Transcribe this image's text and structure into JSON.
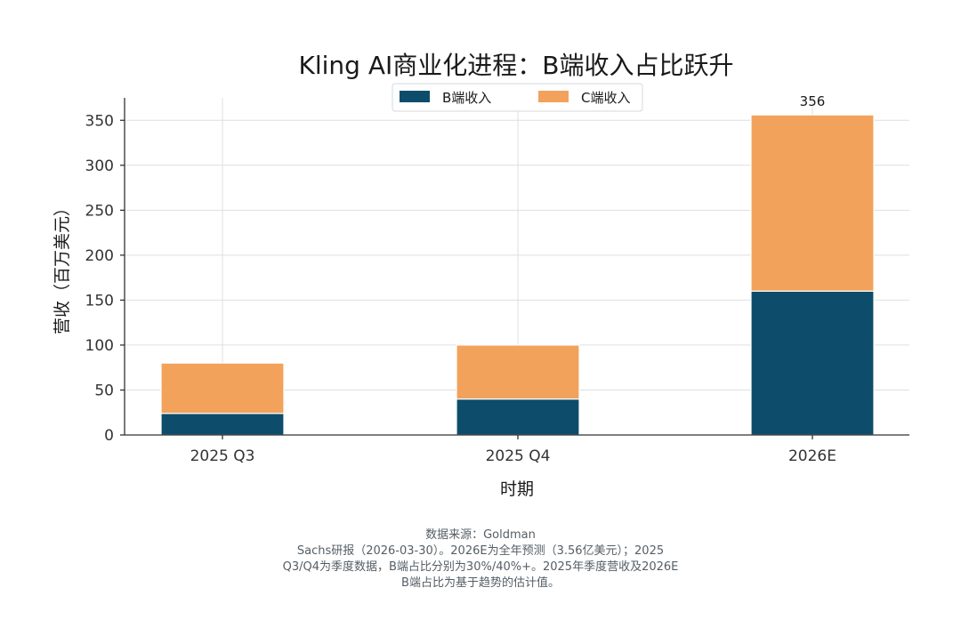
{
  "chart_data": {
    "type": "bar",
    "stacked": true,
    "title": "Kling AI商业化进程：B端收入占比跃升",
    "xlabel": "时期",
    "ylabel": "营收（百万美元）",
    "categories": [
      "2025 Q3",
      "2025 Q4",
      "2026E"
    ],
    "series": [
      {
        "name": "B端收入",
        "color": "#0d4d6b",
        "values": [
          24,
          40,
          160
        ]
      },
      {
        "name": "C端收入",
        "color": "#f2a25b",
        "values": [
          56,
          60,
          196
        ]
      }
    ],
    "totals_labels": [
      {
        "category": "2026E",
        "text": "356"
      }
    ],
    "ylim": [
      0,
      375
    ],
    "yticks": [
      0,
      50,
      100,
      150,
      200,
      250,
      300,
      350
    ],
    "grid": true,
    "legend_position": "top-center"
  },
  "footnote": {
    "lines": [
      "数据来源：Goldman",
      "Sachs研报（2026-03-30）。2026E为全年预测（3.56亿美元）；2025",
      "Q3/Q4为季度数据，B端占比分别为30%/40%+。2025年季度营收及2026E",
      "B端占比为基于趋势的估计值。"
    ]
  }
}
